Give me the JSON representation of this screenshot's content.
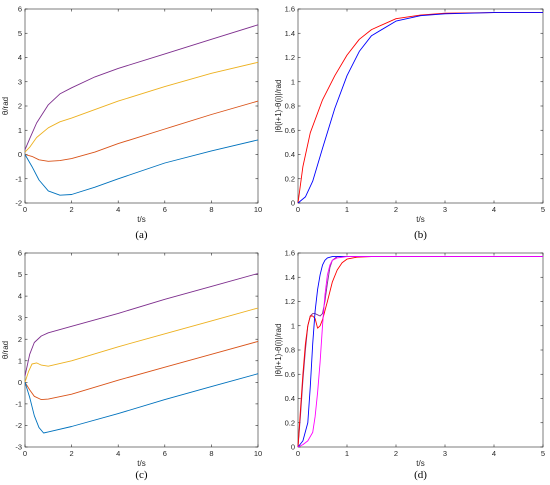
{
  "chart_data": [
    {
      "panel": "a",
      "caption": "(a)",
      "type": "line",
      "xlabel": "t/s",
      "ylabel": "θ/rad",
      "xlim": [
        0,
        10
      ],
      "ylim": [
        -2,
        6
      ],
      "xticks": [
        "0",
        "2",
        "4",
        "6",
        "8",
        "10"
      ],
      "yticks": [
        "-2",
        "-1",
        "0",
        "1",
        "2",
        "3",
        "4",
        "5",
        "6"
      ],
      "grid": false,
      "series": [
        {
          "color": "#7E2F8E",
          "x": [
            0,
            0.2,
            0.5,
            1,
            1.5,
            2,
            3,
            4,
            6,
            8,
            10
          ],
          "y": [
            0.2,
            0.65,
            1.3,
            2.05,
            2.5,
            2.75,
            3.2,
            3.55,
            4.15,
            4.75,
            5.35
          ]
        },
        {
          "color": "#EDB120",
          "x": [
            0,
            0.2,
            0.5,
            1,
            1.5,
            2,
            3,
            4,
            6,
            8,
            10
          ],
          "y": [
            0.1,
            0.3,
            0.7,
            1.1,
            1.35,
            1.5,
            1.85,
            2.2,
            2.8,
            3.35,
            3.8
          ]
        },
        {
          "color": "#D95319",
          "x": [
            0,
            0.3,
            0.6,
            1,
            1.5,
            2,
            3,
            4,
            6,
            8,
            10
          ],
          "y": [
            0,
            -0.08,
            -0.22,
            -0.28,
            -0.25,
            -0.17,
            0.1,
            0.45,
            1.05,
            1.65,
            2.2
          ]
        },
        {
          "color": "#0072BD",
          "x": [
            0,
            0.3,
            0.6,
            1,
            1.5,
            2,
            3,
            4,
            6,
            8,
            10
          ],
          "y": [
            0,
            -0.5,
            -1.05,
            -1.5,
            -1.68,
            -1.65,
            -1.35,
            -1.0,
            -0.35,
            0.15,
            0.6
          ]
        }
      ]
    },
    {
      "panel": "b",
      "caption": "(b)",
      "type": "line",
      "xlabel": "t/s",
      "ylabel": "|θ(i+1)-θ(i)|/rad",
      "xlim": [
        0,
        5
      ],
      "ylim": [
        0,
        1.6
      ],
      "xticks": [
        "0",
        "1",
        "2",
        "3",
        "4",
        "5"
      ],
      "yticks": [
        "0",
        "0.2",
        "0.4",
        "0.6",
        "0.8",
        "1",
        "1.2",
        "1.4",
        "1.6"
      ],
      "grid": false,
      "series": [
        {
          "color": "#FF0000",
          "x": [
            0,
            0.1,
            0.25,
            0.5,
            0.75,
            1,
            1.25,
            1.5,
            2,
            2.5,
            3,
            4,
            5
          ],
          "y": [
            0,
            0.3,
            0.58,
            0.85,
            1.05,
            1.22,
            1.35,
            1.43,
            1.52,
            1.55,
            1.565,
            1.57,
            1.57
          ]
        },
        {
          "color": "#0000FF",
          "x": [
            0,
            0.15,
            0.3,
            0.5,
            0.75,
            1,
            1.25,
            1.5,
            2,
            2.5,
            3,
            4,
            5
          ],
          "y": [
            0,
            0.05,
            0.18,
            0.45,
            0.78,
            1.05,
            1.25,
            1.38,
            1.5,
            1.545,
            1.56,
            1.57,
            1.57
          ]
        }
      ]
    },
    {
      "panel": "c",
      "caption": "(c)",
      "type": "line",
      "xlabel": "t/s",
      "ylabel": "θ/rad",
      "xlim": [
        0,
        10
      ],
      "ylim": [
        -3,
        6
      ],
      "xticks": [
        "0",
        "2",
        "4",
        "6",
        "8",
        "10"
      ],
      "yticks": [
        "-3",
        "-2",
        "-1",
        "0",
        "1",
        "2",
        "3",
        "4",
        "5",
        "6"
      ],
      "grid": false,
      "series": [
        {
          "color": "#7E2F8E",
          "x": [
            0,
            0.2,
            0.4,
            0.7,
            1,
            2,
            4,
            6,
            8,
            10
          ],
          "y": [
            0.3,
            1.3,
            1.85,
            2.15,
            2.3,
            2.6,
            3.2,
            3.85,
            4.45,
            5.05
          ]
        },
        {
          "color": "#EDB120",
          "x": [
            0,
            0.15,
            0.3,
            0.5,
            0.7,
            1,
            2,
            4,
            6,
            8,
            10
          ],
          "y": [
            0,
            0.5,
            0.85,
            0.9,
            0.8,
            0.75,
            1.0,
            1.65,
            2.25,
            2.85,
            3.45
          ]
        },
        {
          "color": "#D95319",
          "x": [
            0,
            0.2,
            0.4,
            0.7,
            1,
            2,
            4,
            6,
            8,
            10
          ],
          "y": [
            0,
            -0.35,
            -0.65,
            -0.8,
            -0.78,
            -0.55,
            0.1,
            0.7,
            1.3,
            1.9
          ]
        },
        {
          "color": "#0072BD",
          "x": [
            0,
            0.2,
            0.4,
            0.6,
            0.8,
            1,
            2,
            4,
            6,
            8,
            10
          ],
          "y": [
            0,
            -0.7,
            -1.55,
            -2.1,
            -2.35,
            -2.3,
            -2.05,
            -1.45,
            -0.8,
            -0.2,
            0.4
          ]
        }
      ]
    },
    {
      "panel": "d",
      "caption": "(d)",
      "type": "line",
      "xlabel": "t/s",
      "ylabel": "|θ(i+1)-θ(i)|/rad",
      "xlim": [
        0,
        5
      ],
      "ylim": [
        0,
        1.6
      ],
      "xticks": [
        "0",
        "1",
        "2",
        "3",
        "4",
        "5"
      ],
      "yticks": [
        "0",
        "0.2",
        "0.4",
        "0.6",
        "0.8",
        "1",
        "1.2",
        "1.4",
        "1.6"
      ],
      "grid": false,
      "series": [
        {
          "color": "#7E2F8E",
          "x": [
            0,
            0.05,
            0.1,
            0.15,
            0.2,
            0.25,
            0.3,
            0.35,
            0.4,
            0.45,
            0.5,
            0.55,
            0.6,
            0.65,
            0.7,
            0.8,
            1,
            1.5,
            2,
            5
          ],
          "y": [
            0,
            0.25,
            0.55,
            0.8,
            1.0,
            1.08,
            1.1,
            1.1,
            1.09,
            1.08,
            1.1,
            1.2,
            1.35,
            1.48,
            1.54,
            1.57,
            1.57,
            1.57,
            1.57,
            1.57
          ]
        },
        {
          "color": "#FF0000",
          "x": [
            0,
            0.05,
            0.1,
            0.15,
            0.2,
            0.25,
            0.3,
            0.35,
            0.4,
            0.45,
            0.5,
            0.6,
            0.7,
            0.8,
            0.9,
            1,
            1.2,
            1.5,
            2,
            5
          ],
          "y": [
            0,
            0.3,
            0.6,
            0.85,
            1.0,
            1.08,
            1.08,
            1.06,
            0.98,
            1.0,
            1.05,
            1.2,
            1.36,
            1.46,
            1.52,
            1.55,
            1.565,
            1.57,
            1.57,
            1.57
          ]
        },
        {
          "color": "#0000FF",
          "x": [
            0,
            0.1,
            0.2,
            0.25,
            0.3,
            0.35,
            0.4,
            0.45,
            0.5,
            0.55,
            0.6,
            0.7,
            0.8,
            1,
            1.5,
            2,
            5
          ],
          "y": [
            0,
            0.05,
            0.2,
            0.5,
            0.85,
            1.12,
            1.3,
            1.42,
            1.5,
            1.54,
            1.56,
            1.57,
            1.57,
            1.57,
            1.57,
            1.57,
            1.57
          ]
        },
        {
          "color": "#FF00FF",
          "x": [
            0,
            0.1,
            0.2,
            0.3,
            0.35,
            0.4,
            0.45,
            0.5,
            0.55,
            0.6,
            0.65,
            0.7,
            0.8,
            1,
            1.5,
            2,
            5
          ],
          "y": [
            0,
            0.02,
            0.05,
            0.12,
            0.25,
            0.45,
            0.7,
            1.0,
            1.25,
            1.42,
            1.5,
            1.54,
            1.56,
            1.57,
            1.57,
            1.57,
            1.57
          ]
        }
      ]
    }
  ]
}
